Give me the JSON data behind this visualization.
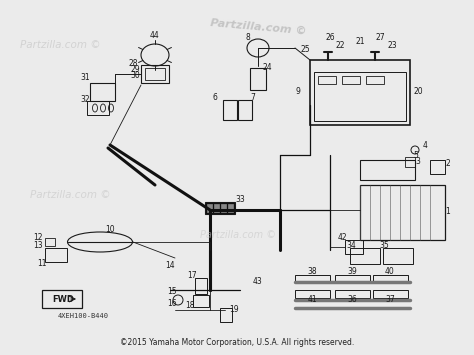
{
  "bg_color": "#ebebeb",
  "diagram_color": "#1a1a1a",
  "wire_color": "#111111",
  "light_gray": "#aaaaaa",
  "watermark_color": "#cccccc",
  "copyright_text": "©2015 Yamaha Motor Corporation, U.S.A. All rights reserved.",
  "part_code": "4XEH100-B440",
  "fwd_label": "FWD",
  "title1": "Partzilla.com",
  "title2": "Partzilla.com ©",
  "fig_width": 4.74,
  "fig_height": 3.55,
  "dpi": 100
}
